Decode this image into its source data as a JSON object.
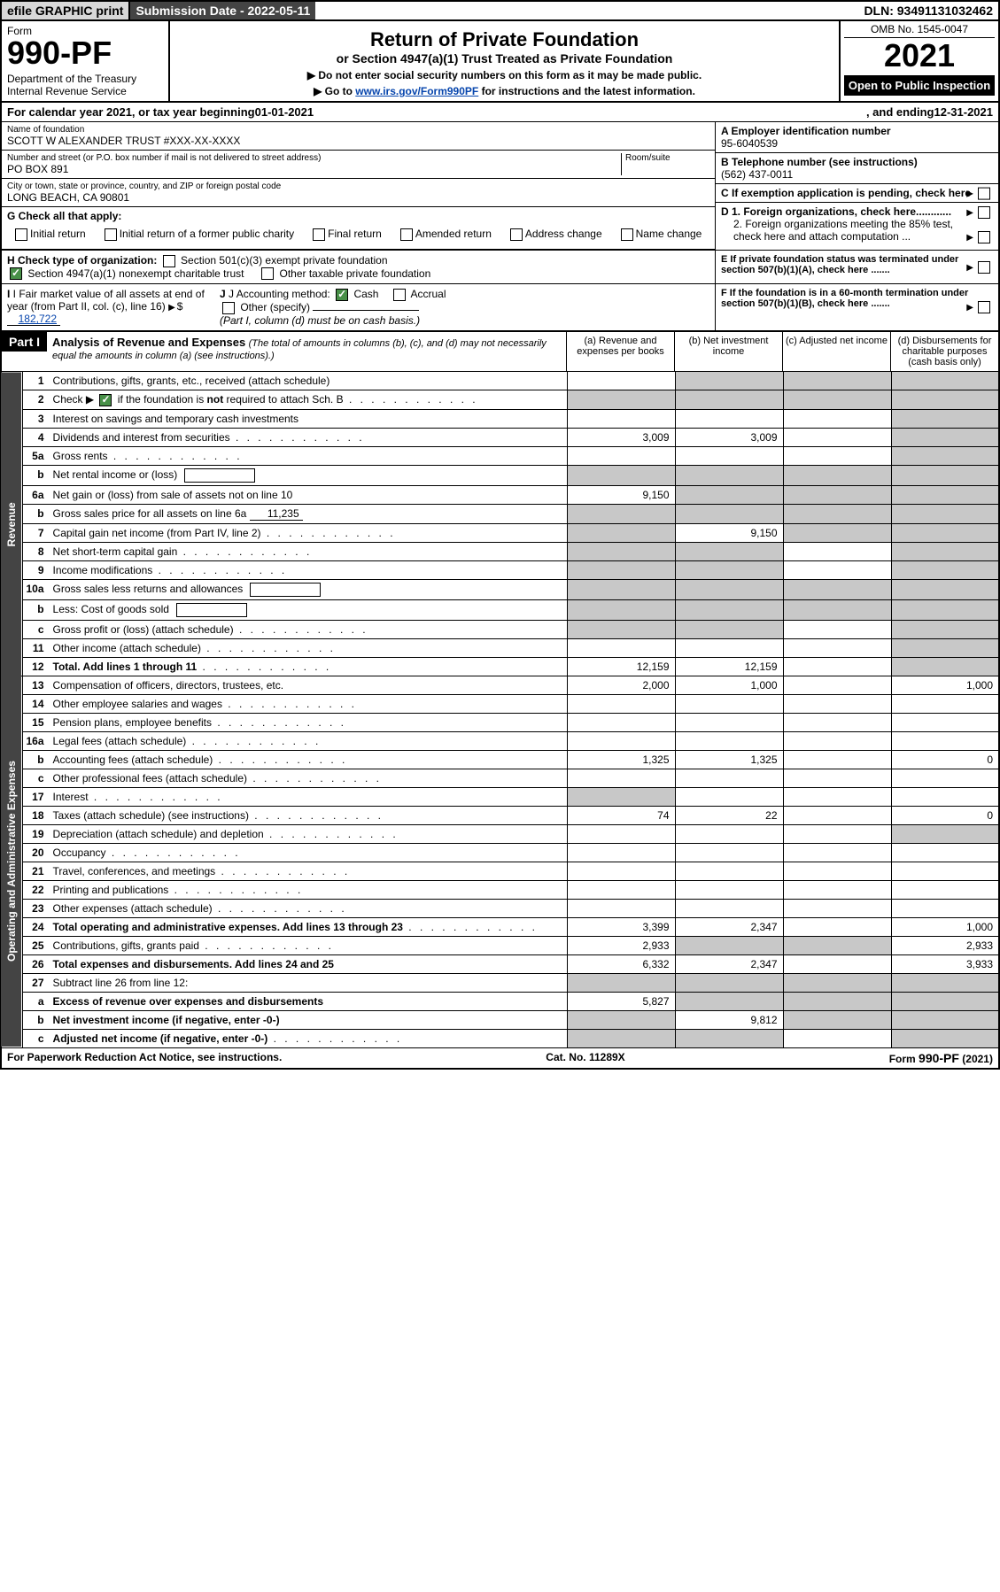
{
  "topbar": {
    "efile": "efile GRAPHIC print",
    "submission": "Submission Date - 2022-05-11",
    "dln": "DLN: 93491131032462"
  },
  "header": {
    "form_label": "Form",
    "form_number": "990-PF",
    "dept": "Department of the Treasury\nInternal Revenue Service",
    "title": "Return of Private Foundation",
    "subtitle": "or Section 4947(a)(1) Trust Treated as Private Foundation",
    "note1": "▶ Do not enter social security numbers on this form as it may be made public.",
    "note2_pre": "▶ Go to ",
    "note2_link": "www.irs.gov/Form990PF",
    "note2_post": " for instructions and the latest information.",
    "omb": "OMB No. 1545-0047",
    "year": "2021",
    "open": "Open to Public Inspection"
  },
  "calendar": {
    "pre": "For calendar year 2021, or tax year beginning ",
    "begin": "01-01-2021",
    "mid": ", and ending ",
    "end": "12-31-2021"
  },
  "info": {
    "name_label": "Name of foundation",
    "name": "SCOTT W ALEXANDER TRUST #XXX-XX-XXXX",
    "addr_label": "Number and street (or P.O. box number if mail is not delivered to street address)",
    "addr": "PO BOX 891",
    "room_label": "Room/suite",
    "city_label": "City or town, state or province, country, and ZIP or foreign postal code",
    "city": "LONG BEACH, CA  90801",
    "a_label": "A Employer identification number",
    "a_val": "95-6040539",
    "b_label": "B Telephone number (see instructions)",
    "b_val": "(562) 437-0011",
    "c_label": "C If exemption application is pending, check here",
    "d1_label": "D 1. Foreign organizations, check here............",
    "d2_label": "2. Foreign organizations meeting the 85% test, check here and attach computation ...",
    "e_label": "E  If private foundation status was terminated under section 507(b)(1)(A), check here .......",
    "f_label": "F  If the foundation is in a 60-month termination under section 507(b)(1)(B), check here .......",
    "g_label": "G Check all that apply:",
    "g_opts": {
      "initial": "Initial return",
      "initial_former": "Initial return of a former public charity",
      "final": "Final return",
      "amended": "Amended return",
      "address": "Address change",
      "name_change": "Name change"
    },
    "h_label": "H Check type of organization:",
    "h_501c3": "Section 501(c)(3) exempt private foundation",
    "h_4947": "Section 4947(a)(1) nonexempt charitable trust",
    "h_other": "Other taxable private foundation",
    "i_label": "I Fair market value of all assets at end of year (from Part II, col. (c), line 16)",
    "i_val": "182,722",
    "j_label": "J Accounting method:",
    "j_cash": "Cash",
    "j_accrual": "Accrual",
    "j_other": "Other (specify)",
    "j_note": "(Part I, column (d) must be on cash basis.)"
  },
  "part1": {
    "label": "Part I",
    "title": "Analysis of Revenue and Expenses",
    "title_note": " (The total of amounts in columns (b), (c), and (d) may not necessarily equal the amounts in column (a) (see instructions).)",
    "col_a": "(a)   Revenue and expenses per books",
    "col_b": "(b)   Net investment income",
    "col_c": "(c)   Adjusted net income",
    "col_d": "(d)   Disbursements for charitable purposes (cash basis only)"
  },
  "side": {
    "revenue": "Revenue",
    "expenses": "Operating and Administrative Expenses"
  },
  "rows": [
    {
      "n": "1",
      "desc": "Contributions, gifts, grants, etc., received (attach schedule)",
      "a": "",
      "b": "shade",
      "c": "shade",
      "d": "shade"
    },
    {
      "n": "2",
      "desc": "Check ▶ [✓] if the foundation is not required to attach Sch. B",
      "a": "shade",
      "b": "shade",
      "c": "shade",
      "d": "shade",
      "checked": true,
      "dots": true
    },
    {
      "n": "3",
      "desc": "Interest on savings and temporary cash investments",
      "a": "",
      "b": "",
      "c": "",
      "d": "shade"
    },
    {
      "n": "4",
      "desc": "Dividends and interest from securities",
      "a": "3,009",
      "b": "3,009",
      "c": "",
      "d": "shade",
      "dots": true
    },
    {
      "n": "5a",
      "desc": "Gross rents",
      "a": "",
      "b": "",
      "c": "",
      "d": "shade",
      "dots": true
    },
    {
      "n": "b",
      "desc": "Net rental income or (loss)",
      "a": "shade",
      "b": "shade",
      "c": "shade",
      "d": "shade",
      "inline_box": true
    },
    {
      "n": "6a",
      "desc": "Net gain or (loss) from sale of assets not on line 10",
      "a": "9,150",
      "b": "shade",
      "c": "shade",
      "d": "shade"
    },
    {
      "n": "b",
      "desc": "Gross sales price for all assets on line 6a",
      "a": "shade",
      "b": "shade",
      "c": "shade",
      "d": "shade",
      "inline_val": "11,235"
    },
    {
      "n": "7",
      "desc": "Capital gain net income (from Part IV, line 2)",
      "a": "shade",
      "b": "9,150",
      "c": "shade",
      "d": "shade",
      "dots": true
    },
    {
      "n": "8",
      "desc": "Net short-term capital gain",
      "a": "shade",
      "b": "shade",
      "c": "",
      "d": "shade",
      "dots": true
    },
    {
      "n": "9",
      "desc": "Income modifications",
      "a": "shade",
      "b": "shade",
      "c": "",
      "d": "shade",
      "dots": true
    },
    {
      "n": "10a",
      "desc": "Gross sales less returns and allowances",
      "a": "shade",
      "b": "shade",
      "c": "shade",
      "d": "shade",
      "inline_box": true
    },
    {
      "n": "b",
      "desc": "Less: Cost of goods sold",
      "a": "shade",
      "b": "shade",
      "c": "shade",
      "d": "shade",
      "dots": true,
      "inline_box": true
    },
    {
      "n": "c",
      "desc": "Gross profit or (loss) (attach schedule)",
      "a": "shade",
      "b": "shade",
      "c": "",
      "d": "shade",
      "dots": true
    },
    {
      "n": "11",
      "desc": "Other income (attach schedule)",
      "a": "",
      "b": "",
      "c": "",
      "d": "shade",
      "dots": true
    },
    {
      "n": "12",
      "desc": "Total. Add lines 1 through 11",
      "a": "12,159",
      "b": "12,159",
      "c": "",
      "d": "shade",
      "bold": true,
      "dots": true
    },
    {
      "n": "13",
      "desc": "Compensation of officers, directors, trustees, etc.",
      "a": "2,000",
      "b": "1,000",
      "c": "",
      "d": "1,000"
    },
    {
      "n": "14",
      "desc": "Other employee salaries and wages",
      "a": "",
      "b": "",
      "c": "",
      "d": "",
      "dots": true
    },
    {
      "n": "15",
      "desc": "Pension plans, employee benefits",
      "a": "",
      "b": "",
      "c": "",
      "d": "",
      "dots": true
    },
    {
      "n": "16a",
      "desc": "Legal fees (attach schedule)",
      "a": "",
      "b": "",
      "c": "",
      "d": "",
      "dots": true
    },
    {
      "n": "b",
      "desc": "Accounting fees (attach schedule)",
      "a": "1,325",
      "b": "1,325",
      "c": "",
      "d": "0",
      "dots": true
    },
    {
      "n": "c",
      "desc": "Other professional fees (attach schedule)",
      "a": "",
      "b": "",
      "c": "",
      "d": "",
      "dots": true
    },
    {
      "n": "17",
      "desc": "Interest",
      "a": "shade",
      "b": "",
      "c": "",
      "d": "",
      "dots": true
    },
    {
      "n": "18",
      "desc": "Taxes (attach schedule) (see instructions)",
      "a": "74",
      "b": "22",
      "c": "",
      "d": "0",
      "dots": true
    },
    {
      "n": "19",
      "desc": "Depreciation (attach schedule) and depletion",
      "a": "",
      "b": "",
      "c": "",
      "d": "shade",
      "dots": true
    },
    {
      "n": "20",
      "desc": "Occupancy",
      "a": "",
      "b": "",
      "c": "",
      "d": "",
      "dots": true
    },
    {
      "n": "21",
      "desc": "Travel, conferences, and meetings",
      "a": "",
      "b": "",
      "c": "",
      "d": "",
      "dots": true
    },
    {
      "n": "22",
      "desc": "Printing and publications",
      "a": "",
      "b": "",
      "c": "",
      "d": "",
      "dots": true
    },
    {
      "n": "23",
      "desc": "Other expenses (attach schedule)",
      "a": "",
      "b": "",
      "c": "",
      "d": "",
      "dots": true
    },
    {
      "n": "24",
      "desc": "Total operating and administrative expenses. Add lines 13 through 23",
      "a": "3,399",
      "b": "2,347",
      "c": "",
      "d": "1,000",
      "bold": true,
      "dots": true
    },
    {
      "n": "25",
      "desc": "Contributions, gifts, grants paid",
      "a": "2,933",
      "b": "shade",
      "c": "shade",
      "d": "2,933",
      "dots": true
    },
    {
      "n": "26",
      "desc": "Total expenses and disbursements. Add lines 24 and 25",
      "a": "6,332",
      "b": "2,347",
      "c": "",
      "d": "3,933",
      "bold": true
    },
    {
      "n": "27",
      "desc": "Subtract line 26 from line 12:",
      "a": "shade",
      "b": "shade",
      "c": "shade",
      "d": "shade"
    },
    {
      "n": "a",
      "desc": "Excess of revenue over expenses and disbursements",
      "a": "5,827",
      "b": "shade",
      "c": "shade",
      "d": "shade",
      "bold": true
    },
    {
      "n": "b",
      "desc": "Net investment income (if negative, enter -0-)",
      "a": "shade",
      "b": "9,812",
      "c": "shade",
      "d": "shade",
      "bold": true
    },
    {
      "n": "c",
      "desc": "Adjusted net income (if negative, enter -0-)",
      "a": "shade",
      "b": "shade",
      "c": "",
      "d": "shade",
      "bold": true,
      "dots": true
    }
  ],
  "footer": {
    "left": "For Paperwork Reduction Act Notice, see instructions.",
    "center": "Cat. No. 11289X",
    "right": "Form 990-PF (2021)"
  }
}
